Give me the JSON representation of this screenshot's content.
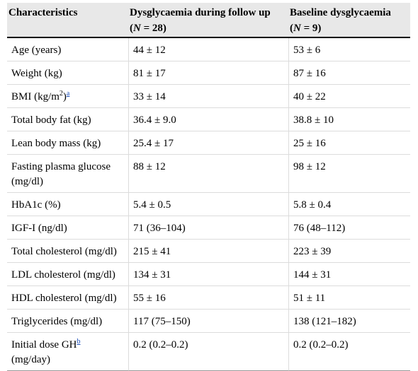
{
  "table": {
    "headers": {
      "col1": "Characteristics",
      "col2_line1": "Dysglycaemia during follow up",
      "col2_n_label": "N",
      "col2_n_value": " = 28)",
      "col3_line1": "Baseline dysglycaemia",
      "col3_n_label": "N",
      "col3_n_value": " = 9)",
      "paren_open": "("
    },
    "rows": [
      {
        "label": "Age (years)",
        "followup": "44 ± 12",
        "baseline": "53 ± 6"
      },
      {
        "label": "Weight (kg)",
        "followup": "81 ± 17",
        "baseline": "87 ± 16"
      },
      {
        "label": "BMI (kg/m",
        "label_sup": "2",
        "label_close": ")",
        "footnote": "a",
        "followup": "33 ± 14",
        "baseline": "40 ± 22"
      },
      {
        "label": "Total body fat (kg)",
        "followup": "36.4 ± 9.0",
        "baseline": "38.8 ± 10"
      },
      {
        "label": "Lean body mass (kg)",
        "followup": "25.4 ± 17",
        "baseline": "25 ± 16"
      },
      {
        "label": "Fasting plasma glucose (mg/dl)",
        "followup": "88 ± 12",
        "baseline": "98 ± 12"
      },
      {
        "label": "HbA1c (%)",
        "followup": "5.4 ± 0.5",
        "baseline": "5.8 ± 0.4"
      },
      {
        "label": "IGF-I (ng/dl)",
        "followup": "71 (36–104)",
        "baseline": "76 (48–112)"
      },
      {
        "label": "Total cholesterol (mg/dl)",
        "followup": "215 ± 41",
        "baseline": "223 ± 39"
      },
      {
        "label": "LDL cholesterol (mg/dl)",
        "followup": "134 ± 31",
        "baseline": "144 ± 31"
      },
      {
        "label": "HDL cholesterol (mg/dl)",
        "followup": "55 ± 16",
        "baseline": "51 ± 11"
      },
      {
        "label": "Triglycerides (mg/dl)",
        "followup": "117 (75–150)",
        "baseline": "138 (121–182)"
      },
      {
        "label": "Initial dose GH",
        "footnote": "b",
        "label_line2": "(mg/day)",
        "followup": "0.2 (0.2–0.2)",
        "baseline": "0.2 (0.2–0.2)"
      }
    ]
  }
}
